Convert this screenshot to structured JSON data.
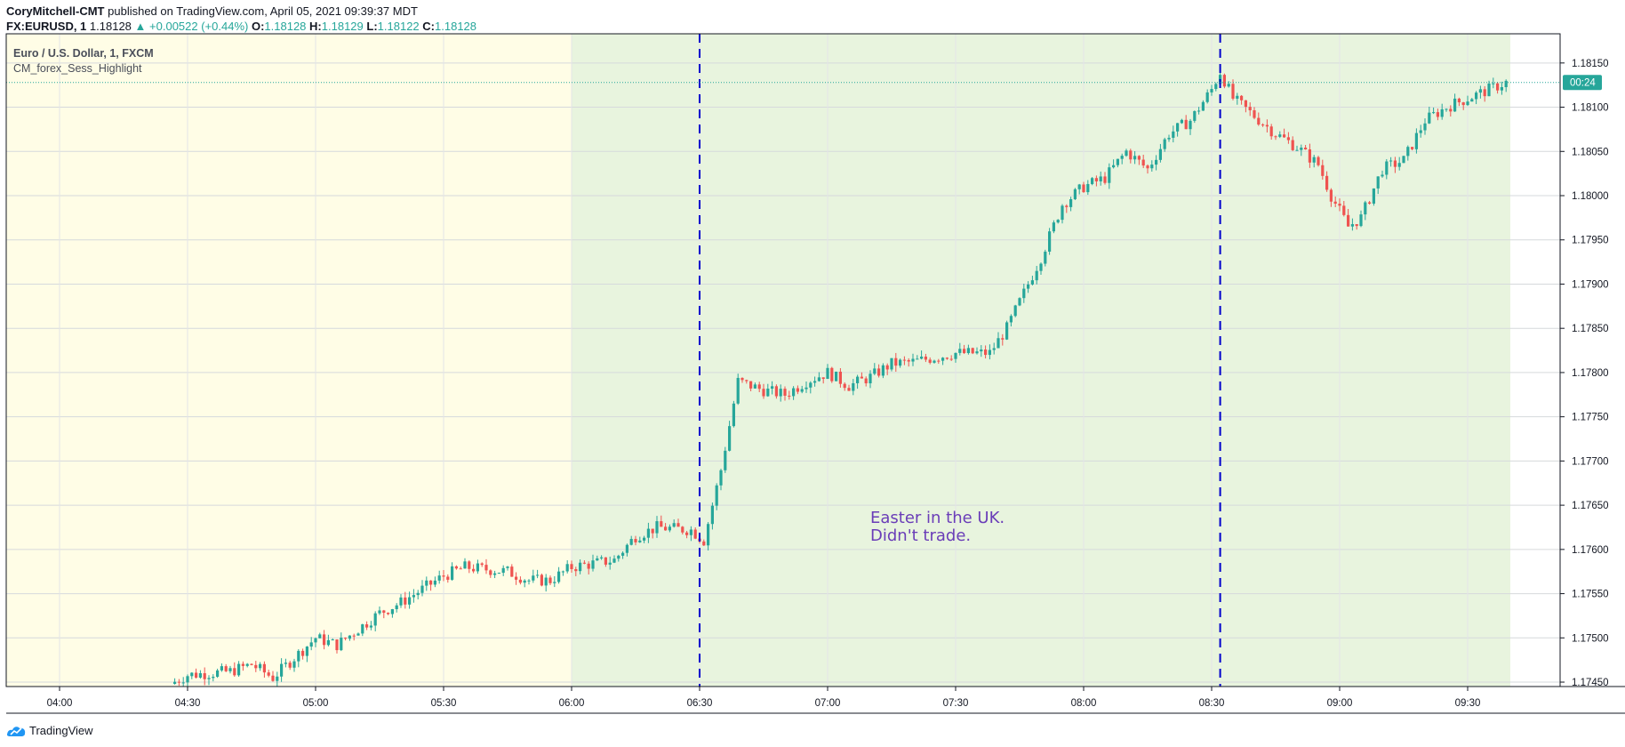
{
  "header": {
    "author": "CoryMitchell-CMT",
    "published": "published on TradingView.com, April 05, 2021 09:39:37 MDT",
    "symbol": "FX:EURUSD, 1",
    "last": "1.18128",
    "change": "▲ +0.00522 (+0.44%)",
    "open_label": "O:",
    "open": "1.18128",
    "high_label": "H:",
    "high": "1.18129",
    "low_label": "L:",
    "low": "1.18122",
    "close_label": "C:",
    "close": "1.18128"
  },
  "legend": {
    "title": "Euro / U.S. Dollar, 1, FXCM",
    "indicator": "CM_forex_Sess_Highlight"
  },
  "footer": {
    "brand": "TradingView"
  },
  "colors": {
    "up": "#26a69a",
    "down": "#ef5350",
    "asia_session": "#fffde6",
    "london_session": "#e8f4de",
    "vline": "#0000cc",
    "annotation": "#6a3db8",
    "price_label_bg": "#26a69a"
  },
  "chart_data": {
    "type": "candlestick",
    "title": "Euro / U.S. Dollar, 1, FXCM",
    "price_label": "1.18128",
    "countdown": "00:24",
    "x_ticks": [
      "04:00",
      "04:30",
      "05:00",
      "05:30",
      "06:00",
      "06:30",
      "07:00",
      "07:30",
      "08:00",
      "08:30",
      "09:00",
      "09:30"
    ],
    "y_ticks": [
      "1.17450",
      "1.17500",
      "1.17550",
      "1.17600",
      "1.17650",
      "1.17700",
      "1.17750",
      "1.17800",
      "1.17850",
      "1.17900",
      "1.17950",
      "1.18000",
      "1.18050",
      "1.18100",
      "1.18150"
    ],
    "ylim": [
      1.17445,
      1.18183
    ],
    "time_range": [
      "03:39",
      "09:40"
    ],
    "session_background": [
      {
        "from": "03:39",
        "to": "06:00",
        "color": "#fffde6"
      },
      {
        "from": "06:00",
        "to": "09:40",
        "color": "#e8f4de"
      }
    ],
    "vertical_lines": [
      "06:30",
      "08:32"
    ],
    "annotation": {
      "lines": [
        "Easter in the UK.",
        "Didn't trade."
      ],
      "time": "07:10",
      "price": 1.1762
    },
    "close_path": [
      [
        "04:26",
        1.17448
      ],
      [
        "04:30",
        1.17458
      ],
      [
        "04:40",
        1.17462
      ],
      [
        "04:45",
        1.1747
      ],
      [
        "04:50",
        1.17455
      ],
      [
        "05:00",
        1.175
      ],
      [
        "05:05",
        1.17492
      ],
      [
        "05:10",
        1.1751
      ],
      [
        "05:15",
        1.17528
      ],
      [
        "05:20",
        1.1754
      ],
      [
        "05:30",
        1.1757
      ],
      [
        "05:35",
        1.1758
      ],
      [
        "05:45",
        1.17575
      ],
      [
        "05:50",
        1.17565
      ],
      [
        "05:55",
        1.17565
      ],
      [
        "06:00",
        1.1758
      ],
      [
        "06:10",
        1.17588
      ],
      [
        "06:15",
        1.17615
      ],
      [
        "06:20",
        1.17625
      ],
      [
        "06:28",
        1.17622
      ],
      [
        "06:31",
        1.1761
      ],
      [
        "06:35",
        1.1769
      ],
      [
        "06:39",
        1.1779
      ],
      [
        "06:45",
        1.1778
      ],
      [
        "06:50",
        1.17775
      ],
      [
        "06:55",
        1.1779
      ],
      [
        "07:00",
        1.178
      ],
      [
        "07:05",
        1.17785
      ],
      [
        "07:10",
        1.17795
      ],
      [
        "07:15",
        1.1781
      ],
      [
        "07:20",
        1.17812
      ],
      [
        "07:30",
        1.17822
      ],
      [
        "07:38",
        1.17822
      ],
      [
        "07:42",
        1.1785
      ],
      [
        "07:45",
        1.1788
      ],
      [
        "07:50",
        1.1793
      ],
      [
        "07:55",
        1.1799
      ],
      [
        "08:00",
        1.1801
      ],
      [
        "08:05",
        1.1802
      ],
      [
        "08:10",
        1.1805
      ],
      [
        "08:15",
        1.1803
      ],
      [
        "08:20",
        1.1807
      ],
      [
        "08:25",
        1.18085
      ],
      [
        "08:30",
        1.1812
      ],
      [
        "08:32",
        1.1814
      ],
      [
        "08:35",
        1.1811
      ],
      [
        "08:40",
        1.1809
      ],
      [
        "08:45",
        1.1807
      ],
      [
        "08:50",
        1.18055
      ],
      [
        "08:55",
        1.18035
      ],
      [
        "08:58",
        1.18
      ],
      [
        "09:02",
        1.17965
      ],
      [
        "09:05",
        1.17975
      ],
      [
        "09:10",
        1.1803
      ],
      [
        "09:15",
        1.1804
      ],
      [
        "09:20",
        1.18085
      ],
      [
        "09:25",
        1.181
      ],
      [
        "09:30",
        1.1811
      ],
      [
        "09:39",
        1.18128
      ]
    ]
  }
}
